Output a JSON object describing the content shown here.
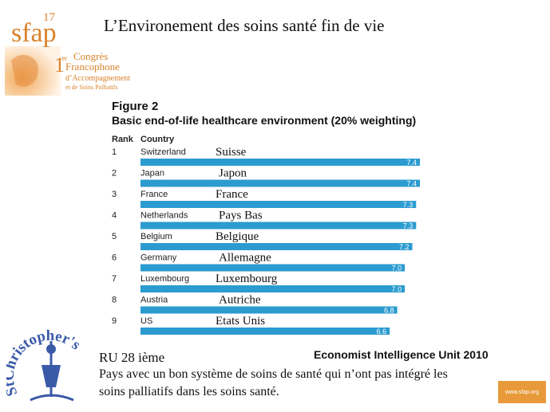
{
  "slide": {
    "title": "L’Environement  des soins santé fin de vie",
    "note_rank": "RU 28 ième",
    "note_body": "Pays avec un bon système de soins de santé qui n’ont pas intégré les soins palliatifs dans les soins santé.",
    "source": "Economist Intelligence Unit 2010",
    "url": "www.sfap.org"
  },
  "logo": {
    "sfap_text": "sfap",
    "edition": "17",
    "congress_number": "1",
    "congress_sup": "er",
    "congress_lines": [
      "Congrès",
      "Francophone",
      "d’Accompagnement",
      "et de Soins Palliatifs"
    ],
    "stc_text": "StChristopher's"
  },
  "figure": {
    "label": "Figure 2",
    "title": "Basic end-of-life healthcare environment (20% weighting)",
    "col_rank": "Rank",
    "col_country": "Country"
  },
  "colors": {
    "bar": "#2b9bd0",
    "orange": "#e89a3a"
  },
  "chart_data": {
    "type": "bar",
    "orientation": "horizontal",
    "title": "Basic end-of-life healthcare environment (20% weighting)",
    "xlim": [
      0,
      7.5
    ],
    "rows": [
      {
        "rank": "1",
        "country": "Switzerland",
        "french": "Suisse",
        "value": 7.4
      },
      {
        "rank": "2",
        "country": "Japan",
        "french": "Japon",
        "value": 7.4
      },
      {
        "rank": "3",
        "country": "France",
        "french": "France",
        "value": 7.3
      },
      {
        "rank": "4",
        "country": "Netherlands",
        "french": "Pays Bas",
        "value": 7.3
      },
      {
        "rank": "5",
        "country": "Belgium",
        "french": "Belgique",
        "value": 7.2
      },
      {
        "rank": "6",
        "country": "Germany",
        "french": "Allemagne",
        "value": 7.0
      },
      {
        "rank": "7",
        "country": "Luxembourg",
        "french": "Luxembourg",
        "value": 7.0
      },
      {
        "rank": "8",
        "country": "Austria",
        "french": "Autriche",
        "value": 6.8
      },
      {
        "rank": "9",
        "country": "US",
        "french": "Etats Unis",
        "value": 6.6
      }
    ]
  }
}
